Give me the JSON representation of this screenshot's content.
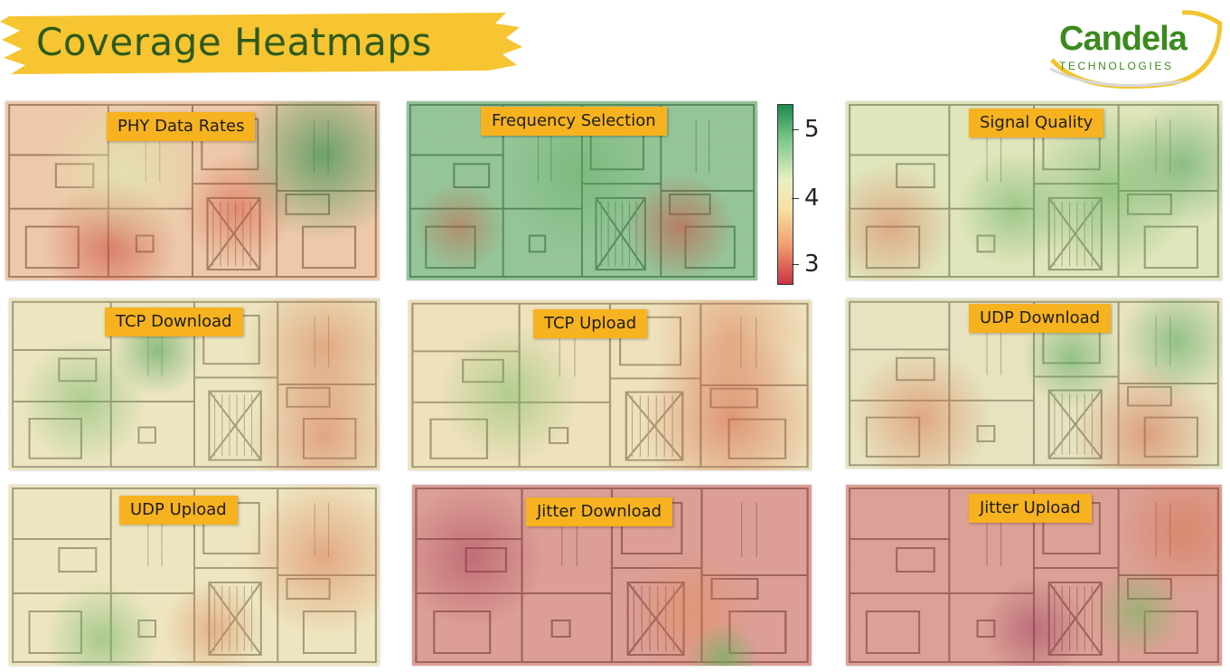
{
  "header": {
    "title": "Coverage Heatmaps",
    "logo_name": "Candela",
    "logo_sub": "TECHNOLOGIES",
    "accent_color": "#f7c531",
    "brand_color": "#3b8a1e"
  },
  "colorbar": {
    "ticks": [
      "5",
      "4",
      "3"
    ],
    "colors_top_to_bottom": [
      "#1e8a4e",
      "#e8f0c4",
      "#cc3344"
    ]
  },
  "panels": [
    {
      "label": "PHY Data Rates"
    },
    {
      "label": "Frequency Selection"
    },
    {
      "label": "Signal Quality"
    },
    {
      "label": "TCP Download"
    },
    {
      "label": "TCP Upload"
    },
    {
      "label": "UDP Download"
    },
    {
      "label": "UDP Upload"
    },
    {
      "label": "Jitter Download"
    },
    {
      "label": "Jitter Upload"
    }
  ]
}
